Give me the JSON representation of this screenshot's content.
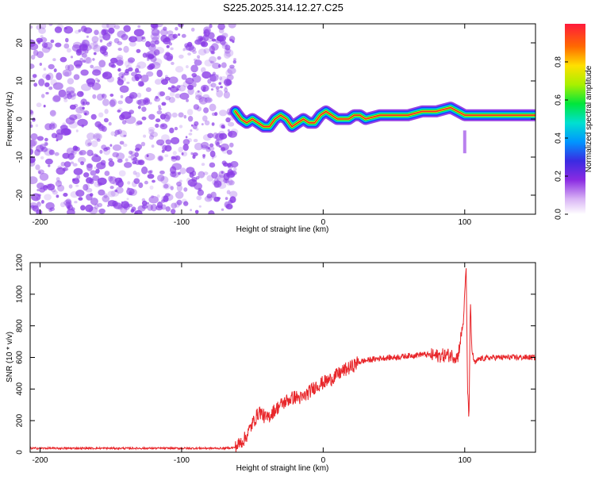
{
  "title": "S225.2025.314.12.27.C25",
  "colors": {
    "snr_line": "#e8262a",
    "ridge": "#e8262a",
    "scatter": "#8a3ce6",
    "axis": "#000000"
  },
  "chart_data": [
    {
      "type": "heatmap",
      "name": "spectrogram",
      "xlabel": "Height of straight line (km)",
      "ylabel": "Frequency (Hz)",
      "xlim": [
        -207,
        150
      ],
      "ylim": [
        -25,
        25
      ],
      "xticks": [
        -200,
        -100,
        0,
        100
      ],
      "xticks_labels": [
        "-200",
        "-100",
        "0",
        "100"
      ],
      "yticks": [
        -20,
        -10,
        0,
        10,
        20
      ],
      "yticks_labels": [
        "-20",
        "-10",
        "0",
        "10",
        "20"
      ],
      "noise_region_x": [
        -207,
        -62
      ],
      "ridge": {
        "x": [
          -62,
          -58,
          -54,
          -50,
          -46,
          -42,
          -38,
          -34,
          -30,
          -26,
          -22,
          -18,
          -14,
          -10,
          -6,
          -2,
          2,
          6,
          10,
          14,
          18,
          22,
          26,
          30,
          40,
          50,
          60,
          70,
          80,
          90,
          95,
          100,
          105,
          110,
          120,
          130,
          140,
          150
        ],
        "y": [
          2,
          0,
          -1,
          0,
          -1,
          -2,
          -2,
          0,
          1,
          0,
          -2,
          -1,
          0,
          -1,
          -1,
          1,
          2,
          1,
          0,
          0,
          0,
          1,
          1,
          0,
          1,
          1,
          1,
          2,
          2,
          3,
          2,
          1,
          1,
          1,
          1,
          1,
          1,
          1
        ]
      },
      "colorbar": {
        "label": "Normalized spectral amplitude",
        "range": [
          0,
          1
        ],
        "ticks": [
          0.0,
          0.2,
          0.4,
          0.6,
          0.8
        ],
        "tick_labels": [
          "0.0",
          "0.2",
          "0.4",
          "0.6",
          "0.8"
        ]
      }
    },
    {
      "type": "line",
      "name": "snr",
      "xlabel": "Height of straight line (km)",
      "ylabel": "SNR (10 * v/v)",
      "xlim": [
        -207,
        150
      ],
      "ylim": [
        0,
        1200
      ],
      "xticks": [
        -200,
        -100,
        0,
        100
      ],
      "xticks_labels": [
        "-200",
        "-100",
        "0",
        "100"
      ],
      "yticks": [
        0,
        200,
        400,
        600,
        800,
        1000,
        1200
      ],
      "yticks_labels": [
        "0",
        "200",
        "400",
        "600",
        "800",
        "1000",
        "1200"
      ],
      "series": [
        {
          "name": "SNR",
          "x": [
            -207,
            -180,
            -150,
            -120,
            -90,
            -70,
            -62,
            -55,
            -50,
            -45,
            -40,
            -35,
            -30,
            -25,
            -20,
            -15,
            -10,
            -5,
            0,
            5,
            10,
            15,
            20,
            25,
            30,
            40,
            50,
            60,
            70,
            80,
            90,
            95,
            99,
            101,
            102,
            103,
            104,
            105,
            107,
            110,
            120,
            130,
            140,
            150
          ],
          "y": [
            25,
            25,
            25,
            25,
            25,
            25,
            30,
            90,
            180,
            260,
            210,
            260,
            300,
            330,
            350,
            340,
            380,
            420,
            440,
            460,
            490,
            520,
            540,
            570,
            580,
            595,
            600,
            610,
            620,
            610,
            615,
            600,
            820,
            1180,
            400,
            210,
            950,
            650,
            560,
            590,
            600,
            600,
            600,
            600
          ]
        }
      ]
    }
  ]
}
